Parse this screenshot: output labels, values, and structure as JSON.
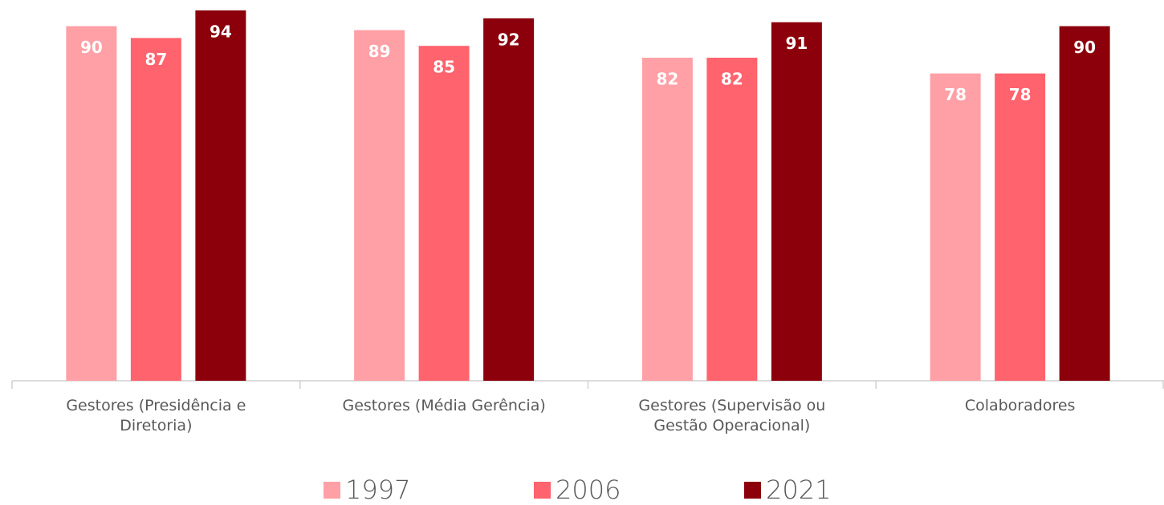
{
  "chart_data": {
    "type": "bar",
    "categories": [
      "Gestores (Presidência e Diretoria)",
      "Gestores (Média Gerência)",
      "Gestores (Supervisão ou Gestão Operacional)",
      "Colaboradores"
    ],
    "series": [
      {
        "name": "1997",
        "color": "#ffa0a6",
        "values": [
          90,
          89,
          82,
          78
        ]
      },
      {
        "name": "2006",
        "color": "#ff636d",
        "values": [
          87,
          85,
          82,
          78
        ]
      },
      {
        "name": "2021",
        "color": "#8b000b",
        "values": [
          94,
          92,
          91,
          90
        ]
      }
    ],
    "legend": "bottom"
  }
}
